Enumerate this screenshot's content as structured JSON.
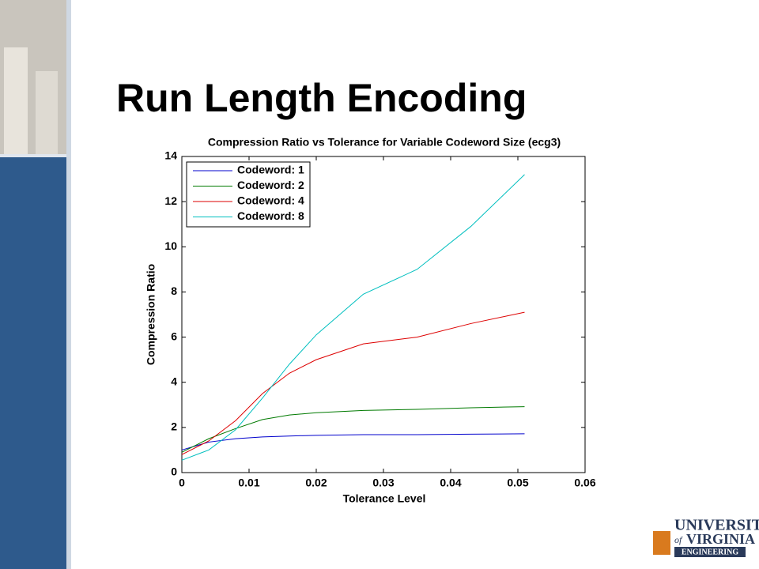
{
  "slide_title": "Run Length Encoding",
  "logo": [
    "UNIVERSITY",
    "of",
    "VIRGINIA",
    "ENGINEERING"
  ],
  "chart_data": {
    "type": "line",
    "title": "Compression Ratio vs Tolerance for Variable Codeword Size (ecg3)",
    "xlabel": "Tolerance Level",
    "ylabel": "Compression Ratio",
    "x": [
      0,
      0.004,
      0.008,
      0.012,
      0.016,
      0.02,
      0.027,
      0.035,
      0.043,
      0.051
    ],
    "series": [
      {
        "name": "Codeword: 1",
        "color": "#0000cc",
        "values": [
          1.0,
          1.35,
          1.5,
          1.58,
          1.62,
          1.65,
          1.68,
          1.68,
          1.7,
          1.72
        ]
      },
      {
        "name": "Codeword: 2",
        "color": "#007a00",
        "values": [
          0.9,
          1.5,
          1.95,
          2.35,
          2.55,
          2.65,
          2.75,
          2.8,
          2.87,
          2.92
        ]
      },
      {
        "name": "Codeword: 4",
        "color": "#dd0000",
        "values": [
          0.8,
          1.4,
          2.3,
          3.5,
          4.4,
          5.0,
          5.7,
          6.0,
          6.6,
          7.1
        ]
      },
      {
        "name": "Codeword: 8",
        "color": "#00bfbf",
        "values": [
          0.55,
          1.0,
          1.9,
          3.3,
          4.8,
          6.1,
          7.9,
          9.0,
          10.9,
          13.2
        ]
      }
    ],
    "xlim": [
      0,
      0.06
    ],
    "xticks": [
      0,
      0.01,
      0.02,
      0.03,
      0.04,
      0.05,
      0.06
    ],
    "ylim": [
      0,
      14
    ],
    "yticks": [
      0,
      2,
      4,
      6,
      8,
      10,
      12,
      14
    ],
    "legend": "upper-left"
  }
}
